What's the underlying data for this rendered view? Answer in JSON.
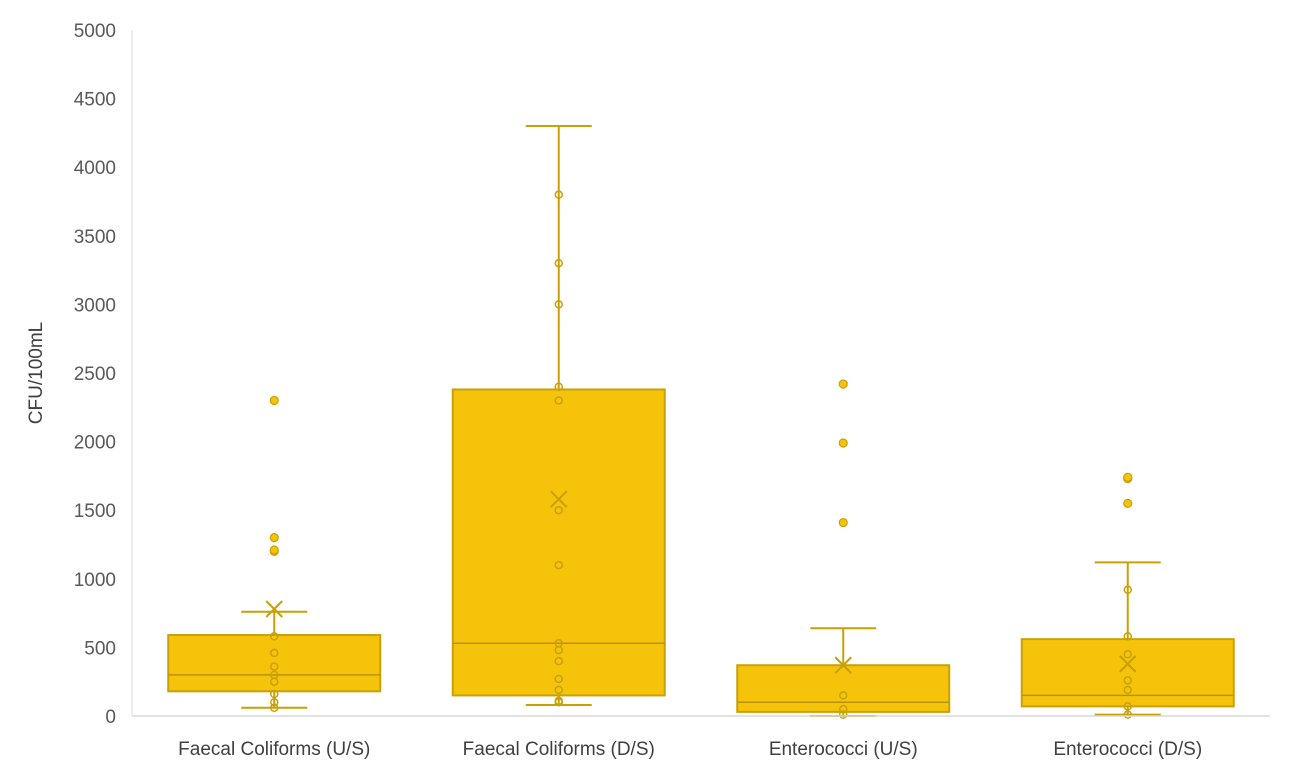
{
  "chart_data": {
    "type": "box",
    "title": "",
    "xlabel": "",
    "ylabel": "CFU/100mL",
    "ylim": [
      0,
      5000
    ],
    "yticks": [
      0,
      500,
      1000,
      1500,
      2000,
      2500,
      3000,
      3500,
      4000,
      4500,
      5000
    ],
    "grid": false,
    "legend": "none",
    "colors": {
      "box": "#f5c40a",
      "stroke": "#c9a006",
      "median": "#b8930a",
      "axis": "#d9d9d9"
    },
    "categories": [
      "Faecal Coliforms (U/S)",
      "Faecal Coliforms (D/S)",
      "Enterococci (U/S)",
      "Enterococci (D/S)"
    ],
    "boxes": [
      {
        "name": "Faecal Coliforms (U/S)",
        "whisker_low": 60,
        "q1": 180,
        "median": 300,
        "q3": 590,
        "whisker_high": 760,
        "mean": 780,
        "points": [
          60,
          100,
          160,
          250,
          300,
          360,
          460,
          580
        ],
        "outliers": [
          1200,
          1210,
          1300,
          2300
        ]
      },
      {
        "name": "Faecal Coliforms (D/S)",
        "whisker_low": 80,
        "q1": 150,
        "median": 530,
        "q3": 2380,
        "whisker_high": 4300,
        "mean": 1580,
        "points": [
          100,
          110,
          190,
          270,
          400,
          480,
          530,
          1100,
          1500,
          2300,
          2400,
          3000,
          3300,
          3800
        ],
        "outliers": []
      },
      {
        "name": "Enterococci (U/S)",
        "whisker_low": 0,
        "q1": 30,
        "median": 100,
        "q3": 370,
        "whisker_high": 640,
        "mean": 370,
        "points": [
          10,
          50,
          150
        ],
        "outliers": [
          1410,
          1990,
          2420
        ]
      },
      {
        "name": "Enterococci (D/S)",
        "whisker_low": 10,
        "q1": 70,
        "median": 150,
        "q3": 560,
        "whisker_high": 1120,
        "mean": 380,
        "points": [
          10,
          70,
          190,
          260,
          450,
          580,
          920
        ],
        "outliers": [
          1550,
          1730,
          1740
        ]
      }
    ]
  }
}
